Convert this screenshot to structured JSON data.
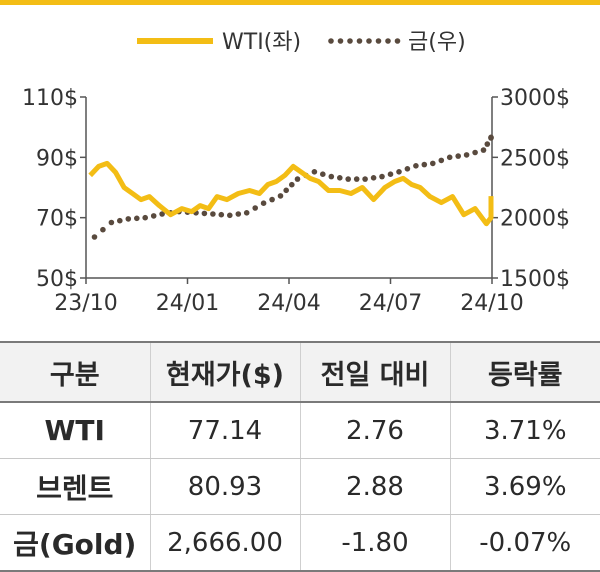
{
  "chart_data": {
    "type": "line",
    "x_ticks": [
      "23/10",
      "24/01",
      "24/04",
      "24/07",
      "24/10"
    ],
    "y_left": {
      "ticks": [
        "110$",
        "90$",
        "70$",
        "50$"
      ],
      "range": [
        50,
        110
      ]
    },
    "y_right": {
      "ticks": [
        "3000$",
        "2500$",
        "2000$",
        "1500$"
      ],
      "range": [
        1500,
        3000
      ]
    },
    "grid": false,
    "legend_position": "top",
    "series": [
      {
        "name": "WTI(좌)",
        "axis": "left",
        "style": "solid",
        "color": "#f3bd15",
        "x": [
          "23/10",
          "23/10",
          "23/10",
          "23/10",
          "23/11",
          "23/11",
          "23/11",
          "23/11",
          "23/12",
          "23/12",
          "23/12",
          "24/01",
          "24/01",
          "24/01",
          "24/01",
          "24/02",
          "24/02",
          "24/02",
          "24/03",
          "24/03",
          "24/03",
          "24/03",
          "24/04",
          "24/04",
          "24/04",
          "24/04",
          "24/05",
          "24/05",
          "24/05",
          "24/06",
          "24/06",
          "24/06",
          "24/07",
          "24/07",
          "24/07",
          "24/07",
          "24/08",
          "24/08",
          "24/08",
          "24/09",
          "24/09",
          "24/09",
          "24/10",
          "24/10"
        ],
        "values": [
          84,
          87,
          88,
          85,
          80,
          78,
          76,
          77,
          74,
          71,
          73,
          72,
          74,
          73,
          77,
          76,
          78,
          79,
          78,
          81,
          82,
          84,
          87,
          85,
          83,
          82,
          79,
          79,
          78,
          80,
          76,
          80,
          82,
          83,
          81,
          80,
          77,
          75,
          77,
          71,
          73,
          68,
          70,
          77.14
        ]
      },
      {
        "name": "금(우)",
        "axis": "right",
        "style": "dotted",
        "color": "#594a3e",
        "x": [
          "23/10",
          "23/10",
          "23/11",
          "23/11",
          "23/12",
          "23/12",
          "24/01",
          "24/01",
          "24/02",
          "24/02",
          "24/03",
          "24/03",
          "24/04",
          "24/04",
          "24/05",
          "24/05",
          "24/06",
          "24/06",
          "24/07",
          "24/07",
          "24/08",
          "24/08",
          "24/09",
          "24/09",
          "24/10",
          "24/10"
        ],
        "values": [
          1840,
          1960,
          1990,
          2000,
          2030,
          2050,
          2040,
          2030,
          2020,
          2040,
          2120,
          2180,
          2320,
          2380,
          2340,
          2320,
          2320,
          2340,
          2380,
          2430,
          2450,
          2500,
          2520,
          2560,
          2660,
          2666
        ]
      }
    ]
  },
  "table": {
    "headers": [
      "구분",
      "현재가($)",
      "전일 대비",
      "등락률"
    ],
    "rows": [
      {
        "name": "WTI",
        "price": "77.14",
        "change": "2.76",
        "rate": "3.71%"
      },
      {
        "name": "브렌트",
        "price": "80.93",
        "change": "2.88",
        "rate": "3.69%"
      },
      {
        "name": "금(Gold)",
        "price": "2,666.00",
        "change": "-1.80",
        "rate": "-0.07%"
      }
    ]
  }
}
